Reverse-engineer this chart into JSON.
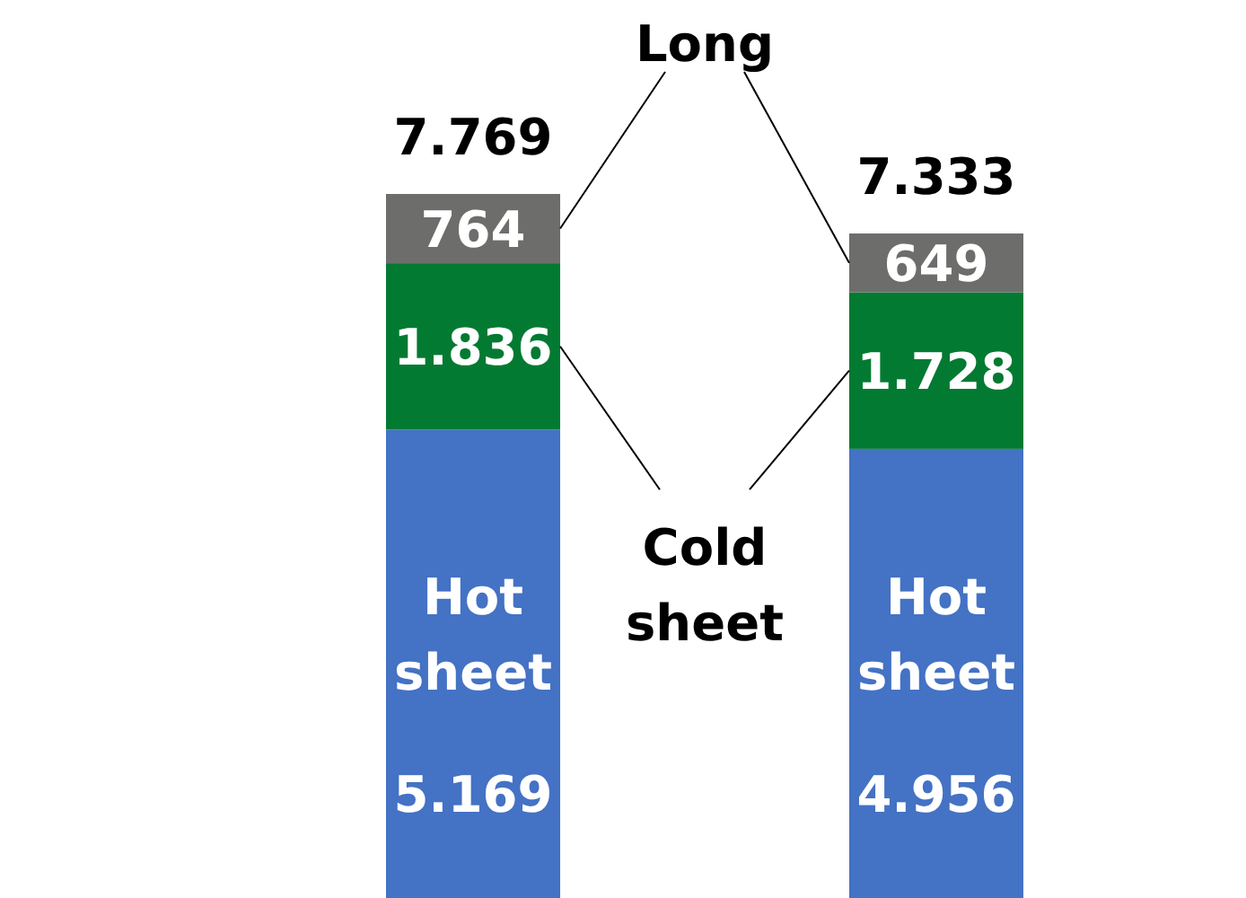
{
  "chart_data": {
    "type": "bar",
    "stacked": true,
    "categories": [
      null,
      null
    ],
    "series": [
      {
        "name": "Hot sheet",
        "color": "#4472c4",
        "values": [
          5169,
          4956
        ],
        "value_labels": [
          "5.169",
          "4.956"
        ]
      },
      {
        "name": "Cold sheet",
        "color": "#037a32",
        "values": [
          1836,
          1728
        ],
        "value_labels": [
          "1.836",
          "1.728"
        ]
      },
      {
        "name": "Long",
        "color": "#6d6e6c",
        "values": [
          764,
          649
        ],
        "value_labels": [
          "764",
          "649"
        ]
      }
    ],
    "totals": [
      "7.769",
      "7.333"
    ]
  }
}
